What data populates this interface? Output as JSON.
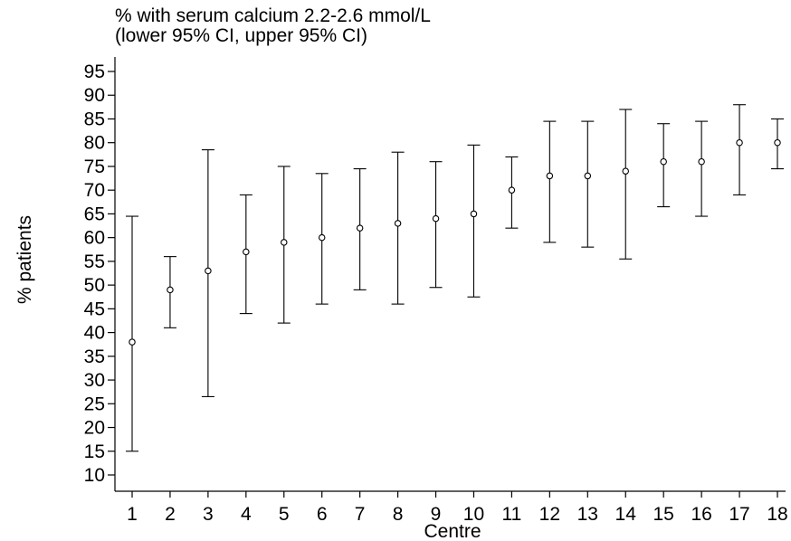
{
  "chart_data": {
    "type": "scatter",
    "title": "% with serum calcium 2.2-2.6 mmol/L",
    "subtitle": "(lower 95% CI, upper 95% CI)",
    "xlabel": "Centre",
    "ylabel": "% patients",
    "x_ticks": [
      "1",
      "2",
      "3",
      "4",
      "5",
      "6",
      "7",
      "8",
      "9",
      "10",
      "11",
      "12",
      "13",
      "14",
      "15",
      "16",
      "17",
      "18"
    ],
    "y_ticks": [
      10,
      15,
      20,
      25,
      30,
      35,
      40,
      45,
      50,
      55,
      60,
      65,
      70,
      75,
      80,
      85,
      90,
      95
    ],
    "ylim": [
      7,
      100
    ],
    "xlim": [
      0.6,
      18.4
    ],
    "grid": false,
    "points": [
      {
        "centre": 1,
        "value": 38,
        "lower": 15,
        "upper": 64.5
      },
      {
        "centre": 2,
        "value": 49,
        "lower": 41,
        "upper": 56
      },
      {
        "centre": 3,
        "value": 53,
        "lower": 26.5,
        "upper": 78.5
      },
      {
        "centre": 4,
        "value": 57,
        "lower": 44,
        "upper": 69
      },
      {
        "centre": 5,
        "value": 59,
        "lower": 42,
        "upper": 75
      },
      {
        "centre": 6,
        "value": 60,
        "lower": 46,
        "upper": 73.5
      },
      {
        "centre": 7,
        "value": 62,
        "lower": 49,
        "upper": 74.5
      },
      {
        "centre": 8,
        "value": 63,
        "lower": 46,
        "upper": 78
      },
      {
        "centre": 9,
        "value": 64,
        "lower": 49.5,
        "upper": 76
      },
      {
        "centre": 10,
        "value": 65,
        "lower": 47.5,
        "upper": 79.5
      },
      {
        "centre": 11,
        "value": 70,
        "lower": 62,
        "upper": 77
      },
      {
        "centre": 12,
        "value": 73,
        "lower": 59,
        "upper": 84.5
      },
      {
        "centre": 13,
        "value": 73,
        "lower": 58,
        "upper": 84.5
      },
      {
        "centre": 14,
        "value": 74,
        "lower": 55.5,
        "upper": 87
      },
      {
        "centre": 15,
        "value": 76,
        "lower": 66.5,
        "upper": 84
      },
      {
        "centre": 16,
        "value": 76,
        "lower": 64.5,
        "upper": 84.5
      },
      {
        "centre": 17,
        "value": 80,
        "lower": 69,
        "upper": 88
      },
      {
        "centre": 18,
        "value": 80,
        "lower": 74.5,
        "upper": 85
      }
    ]
  }
}
